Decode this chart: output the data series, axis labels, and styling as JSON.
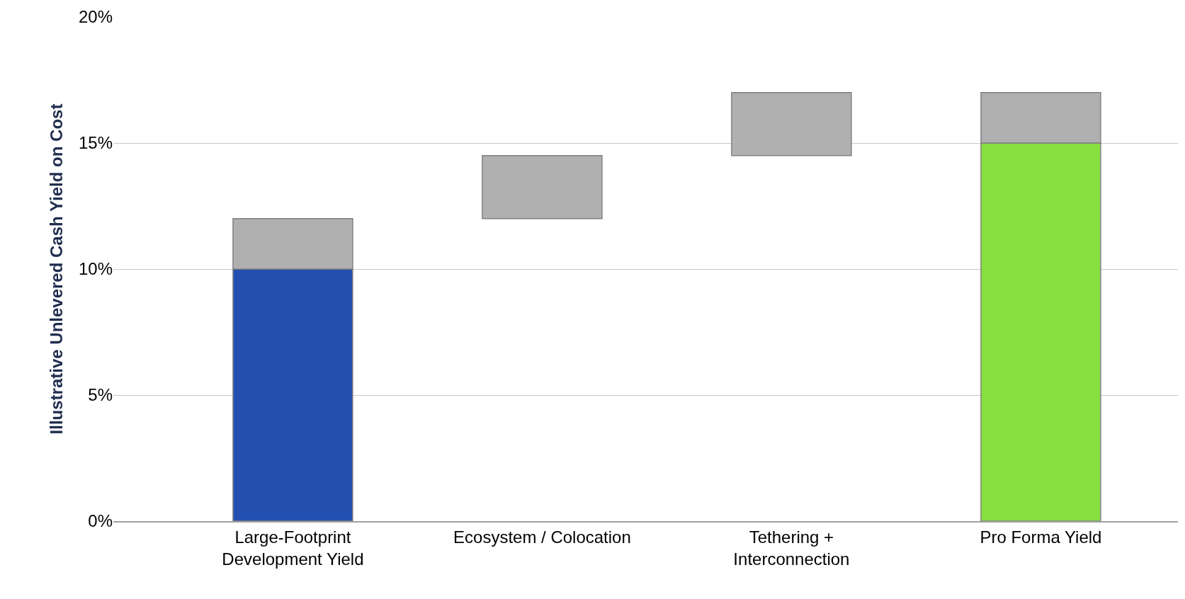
{
  "chart_data": {
    "type": "bar",
    "ylabel": "Illustrative Unlevered Cash Yield on Cost",
    "categories": [
      "Large-Footprint\nDevelopment Yield",
      "Ecosystem / Colocation",
      "Tethering +\nInterconnection",
      "Pro Forma Yield"
    ],
    "stacked": true,
    "series": [
      {
        "colors": [
          "#2350b0",
          "#2350b0",
          "#2350b0",
          "#88e040"
        ],
        "values": [
          10,
          null,
          null,
          15
        ]
      },
      {
        "color": "#b0b0b0",
        "values": [
          2,
          2.5,
          2.5,
          2
        ],
        "base": [
          10,
          12,
          14.5,
          15
        ]
      }
    ],
    "ylim": [
      0,
      20
    ],
    "yticks": [
      {
        "value": 0,
        "label": "0%"
      },
      {
        "value": 5,
        "label": "5%"
      },
      {
        "value": 10,
        "label": "10%"
      },
      {
        "value": 15,
        "label": "15%"
      },
      {
        "value": 20,
        "label": "20%"
      }
    ],
    "grid": "y",
    "legend": false
  }
}
